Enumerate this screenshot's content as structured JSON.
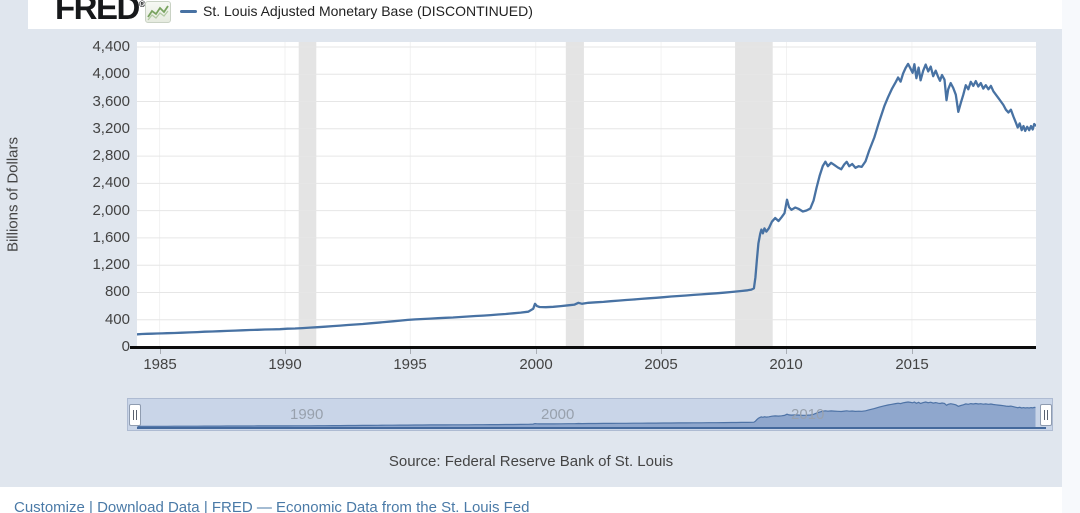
{
  "header": {
    "logo_text": "FRED",
    "logo_reg": "®",
    "legend_label": "St. Louis Adjusted Monetary Base (DISCONTINUED)"
  },
  "source_text": "Source: Federal Reserve Bank of St. Louis",
  "footer_link": "Customize | Download Data | FRED — Economic Data from the St. Louis Fed",
  "colors": {
    "widget_bg": "#e0e6ee",
    "line": "#4872a3",
    "recession_band": "#e4e4e4",
    "grid": "#e6e6e6",
    "vgrid": "#f2f2f2",
    "nav_track": "#c9d5e8",
    "nav_fill": "#8fa7cd",
    "nav_line": "#4e73a6",
    "nav_baseline": "#44699c",
    "link": "#4a7aa7",
    "logo_sparkline": "#79a360"
  },
  "chart_data": {
    "type": "line",
    "title": "St. Louis Adjusted Monetary Base (DISCONTINUED)",
    "ylabel": "Billions of Dollars",
    "xlabel": "",
    "grid": true,
    "legend_position": "top",
    "xlim": [
      1984.1,
      2019.95
    ],
    "ylim": [
      0,
      4400
    ],
    "y_tick_values": [
      0,
      400,
      800,
      1200,
      1600,
      2000,
      2400,
      2800,
      3200,
      3600,
      4000,
      4400
    ],
    "y_tick_labels": [
      "0",
      "400",
      "800",
      "1,200",
      "1,600",
      "2,000",
      "2,400",
      "2,800",
      "3,200",
      "3,600",
      "4,000",
      "4,400"
    ],
    "x_tick_values": [
      1985,
      1990,
      1995,
      2000,
      2005,
      2010,
      2015
    ],
    "x_tick_labels": [
      "1985",
      "1990",
      "1995",
      "2000",
      "2005",
      "2010",
      "2015"
    ],
    "recession_bands": [
      [
        1990.55,
        1991.25
      ],
      [
        2001.2,
        2001.92
      ],
      [
        2007.95,
        2009.45
      ]
    ],
    "series": [
      {
        "name": "St. Louis Adjusted Monetary Base (DISCONTINUED)",
        "color": "#4872a3",
        "points": [
          [
            1984.12,
            187
          ],
          [
            1984.3,
            190
          ],
          [
            1984.5,
            193
          ],
          [
            1984.7,
            195
          ],
          [
            1984.9,
            198
          ],
          [
            1985.1,
            200
          ],
          [
            1985.3,
            202
          ],
          [
            1985.6,
            206
          ],
          [
            1985.9,
            210
          ],
          [
            1986.2,
            214
          ],
          [
            1986.5,
            219
          ],
          [
            1986.8,
            224
          ],
          [
            1987.1,
            228
          ],
          [
            1987.4,
            232
          ],
          [
            1987.7,
            236
          ],
          [
            1988.0,
            241
          ],
          [
            1988.3,
            245
          ],
          [
            1988.6,
            249
          ],
          [
            1988.9,
            253
          ],
          [
            1989.2,
            256
          ],
          [
            1989.5,
            258
          ],
          [
            1989.8,
            261
          ],
          [
            1990.1,
            268
          ],
          [
            1990.4,
            272
          ],
          [
            1990.7,
            277
          ],
          [
            1991.0,
            284
          ],
          [
            1991.3,
            291
          ],
          [
            1991.6,
            298
          ],
          [
            1991.9,
            306
          ],
          [
            1992.2,
            314
          ],
          [
            1992.5,
            322
          ],
          [
            1992.8,
            330
          ],
          [
            1993.1,
            338
          ],
          [
            1993.4,
            347
          ],
          [
            1993.7,
            356
          ],
          [
            1994.0,
            367
          ],
          [
            1994.3,
            377
          ],
          [
            1994.6,
            387
          ],
          [
            1994.9,
            397
          ],
          [
            1995.2,
            405
          ],
          [
            1995.5,
            411
          ],
          [
            1995.8,
            417
          ],
          [
            1996.1,
            423
          ],
          [
            1996.4,
            428
          ],
          [
            1996.7,
            433
          ],
          [
            1997.0,
            440
          ],
          [
            1997.3,
            447
          ],
          [
            1997.6,
            454
          ],
          [
            1997.9,
            461
          ],
          [
            1998.2,
            468
          ],
          [
            1998.5,
            476
          ],
          [
            1998.8,
            484
          ],
          [
            1999.1,
            494
          ],
          [
            1999.4,
            504
          ],
          [
            1999.7,
            518
          ],
          [
            1999.9,
            560
          ],
          [
            1999.97,
            634
          ],
          [
            2000.05,
            600
          ],
          [
            2000.15,
            586
          ],
          [
            2000.4,
            584
          ],
          [
            2000.7,
            590
          ],
          [
            2001.0,
            600
          ],
          [
            2001.3,
            612
          ],
          [
            2001.55,
            622
          ],
          [
            2001.7,
            648
          ],
          [
            2001.85,
            634
          ],
          [
            2002.1,
            648
          ],
          [
            2002.4,
            655
          ],
          [
            2002.7,
            662
          ],
          [
            2003.0,
            672
          ],
          [
            2003.3,
            681
          ],
          [
            2003.6,
            689
          ],
          [
            2003.9,
            697
          ],
          [
            2004.2,
            706
          ],
          [
            2004.5,
            714
          ],
          [
            2004.8,
            722
          ],
          [
            2005.1,
            731
          ],
          [
            2005.4,
            740
          ],
          [
            2005.7,
            748
          ],
          [
            2006.0,
            756
          ],
          [
            2006.3,
            764
          ],
          [
            2006.6,
            772
          ],
          [
            2006.9,
            780
          ],
          [
            2007.2,
            788
          ],
          [
            2007.5,
            797
          ],
          [
            2007.8,
            806
          ],
          [
            2008.0,
            814
          ],
          [
            2008.2,
            822
          ],
          [
            2008.45,
            832
          ],
          [
            2008.6,
            842
          ],
          [
            2008.7,
            860
          ],
          [
            2008.76,
            1020
          ],
          [
            2008.82,
            1280
          ],
          [
            2008.88,
            1520
          ],
          [
            2008.95,
            1660
          ],
          [
            2009.0,
            1722
          ],
          [
            2009.06,
            1668
          ],
          [
            2009.12,
            1740
          ],
          [
            2009.2,
            1692
          ],
          [
            2009.3,
            1742
          ],
          [
            2009.42,
            1838
          ],
          [
            2009.55,
            1892
          ],
          [
            2009.68,
            1848
          ],
          [
            2009.8,
            1902
          ],
          [
            2009.92,
            1962
          ],
          [
            2010.02,
            2160
          ],
          [
            2010.1,
            2052
          ],
          [
            2010.2,
            2012
          ],
          [
            2010.35,
            2046
          ],
          [
            2010.5,
            2022
          ],
          [
            2010.65,
            1988
          ],
          [
            2010.8,
            2002
          ],
          [
            2010.95,
            2032
          ],
          [
            2011.08,
            2150
          ],
          [
            2011.2,
            2340
          ],
          [
            2011.32,
            2510
          ],
          [
            2011.45,
            2655
          ],
          [
            2011.55,
            2718
          ],
          [
            2011.65,
            2652
          ],
          [
            2011.78,
            2702
          ],
          [
            2011.9,
            2672
          ],
          [
            2012.05,
            2632
          ],
          [
            2012.18,
            2606
          ],
          [
            2012.3,
            2676
          ],
          [
            2012.4,
            2716
          ],
          [
            2012.5,
            2652
          ],
          [
            2012.62,
            2684
          ],
          [
            2012.75,
            2628
          ],
          [
            2012.88,
            2652
          ],
          [
            2013.0,
            2642
          ],
          [
            2013.15,
            2722
          ],
          [
            2013.3,
            2882
          ],
          [
            2013.5,
            3072
          ],
          [
            2013.7,
            3312
          ],
          [
            2013.9,
            3532
          ],
          [
            2014.05,
            3662
          ],
          [
            2014.2,
            3782
          ],
          [
            2014.35,
            3882
          ],
          [
            2014.45,
            3952
          ],
          [
            2014.55,
            3892
          ],
          [
            2014.65,
            4012
          ],
          [
            2014.75,
            4092
          ],
          [
            2014.85,
            4152
          ],
          [
            2014.95,
            4082
          ],
          [
            2015.03,
            4022
          ],
          [
            2015.1,
            4148
          ],
          [
            2015.18,
            3942
          ],
          [
            2015.27,
            4098
          ],
          [
            2015.35,
            3912
          ],
          [
            2015.45,
            4052
          ],
          [
            2015.55,
            4142
          ],
          [
            2015.65,
            4042
          ],
          [
            2015.75,
            4112
          ],
          [
            2015.85,
            3972
          ],
          [
            2015.95,
            4052
          ],
          [
            2016.05,
            3960
          ],
          [
            2016.12,
            3905
          ],
          [
            2016.2,
            3990
          ],
          [
            2016.3,
            3920
          ],
          [
            2016.38,
            3620
          ],
          [
            2016.45,
            3780
          ],
          [
            2016.55,
            3870
          ],
          [
            2016.65,
            3800
          ],
          [
            2016.75,
            3700
          ],
          [
            2016.85,
            3450
          ],
          [
            2016.95,
            3580
          ],
          [
            2017.05,
            3700
          ],
          [
            2017.15,
            3840
          ],
          [
            2017.25,
            3780
          ],
          [
            2017.35,
            3890
          ],
          [
            2017.45,
            3830
          ],
          [
            2017.55,
            3900
          ],
          [
            2017.65,
            3820
          ],
          [
            2017.75,
            3870
          ],
          [
            2017.85,
            3790
          ],
          [
            2017.95,
            3840
          ],
          [
            2018.05,
            3780
          ],
          [
            2018.15,
            3830
          ],
          [
            2018.25,
            3750
          ],
          [
            2018.35,
            3700
          ],
          [
            2018.45,
            3650
          ],
          [
            2018.55,
            3600
          ],
          [
            2018.65,
            3550
          ],
          [
            2018.75,
            3480
          ],
          [
            2018.85,
            3440
          ],
          [
            2018.95,
            3480
          ],
          [
            2019.05,
            3380
          ],
          [
            2019.15,
            3290
          ],
          [
            2019.22,
            3220
          ],
          [
            2019.3,
            3280
          ],
          [
            2019.38,
            3180
          ],
          [
            2019.45,
            3240
          ],
          [
            2019.52,
            3170
          ],
          [
            2019.6,
            3230
          ],
          [
            2019.68,
            3180
          ],
          [
            2019.75,
            3240
          ],
          [
            2019.82,
            3190
          ],
          [
            2019.88,
            3270
          ],
          [
            2019.93,
            3250
          ]
        ]
      }
    ],
    "navigator": {
      "labels": [
        {
          "year": 1990,
          "label": "1990"
        },
        {
          "year": 2000,
          "label": "2000"
        },
        {
          "year": 2010,
          "label": "2010"
        }
      ]
    }
  }
}
